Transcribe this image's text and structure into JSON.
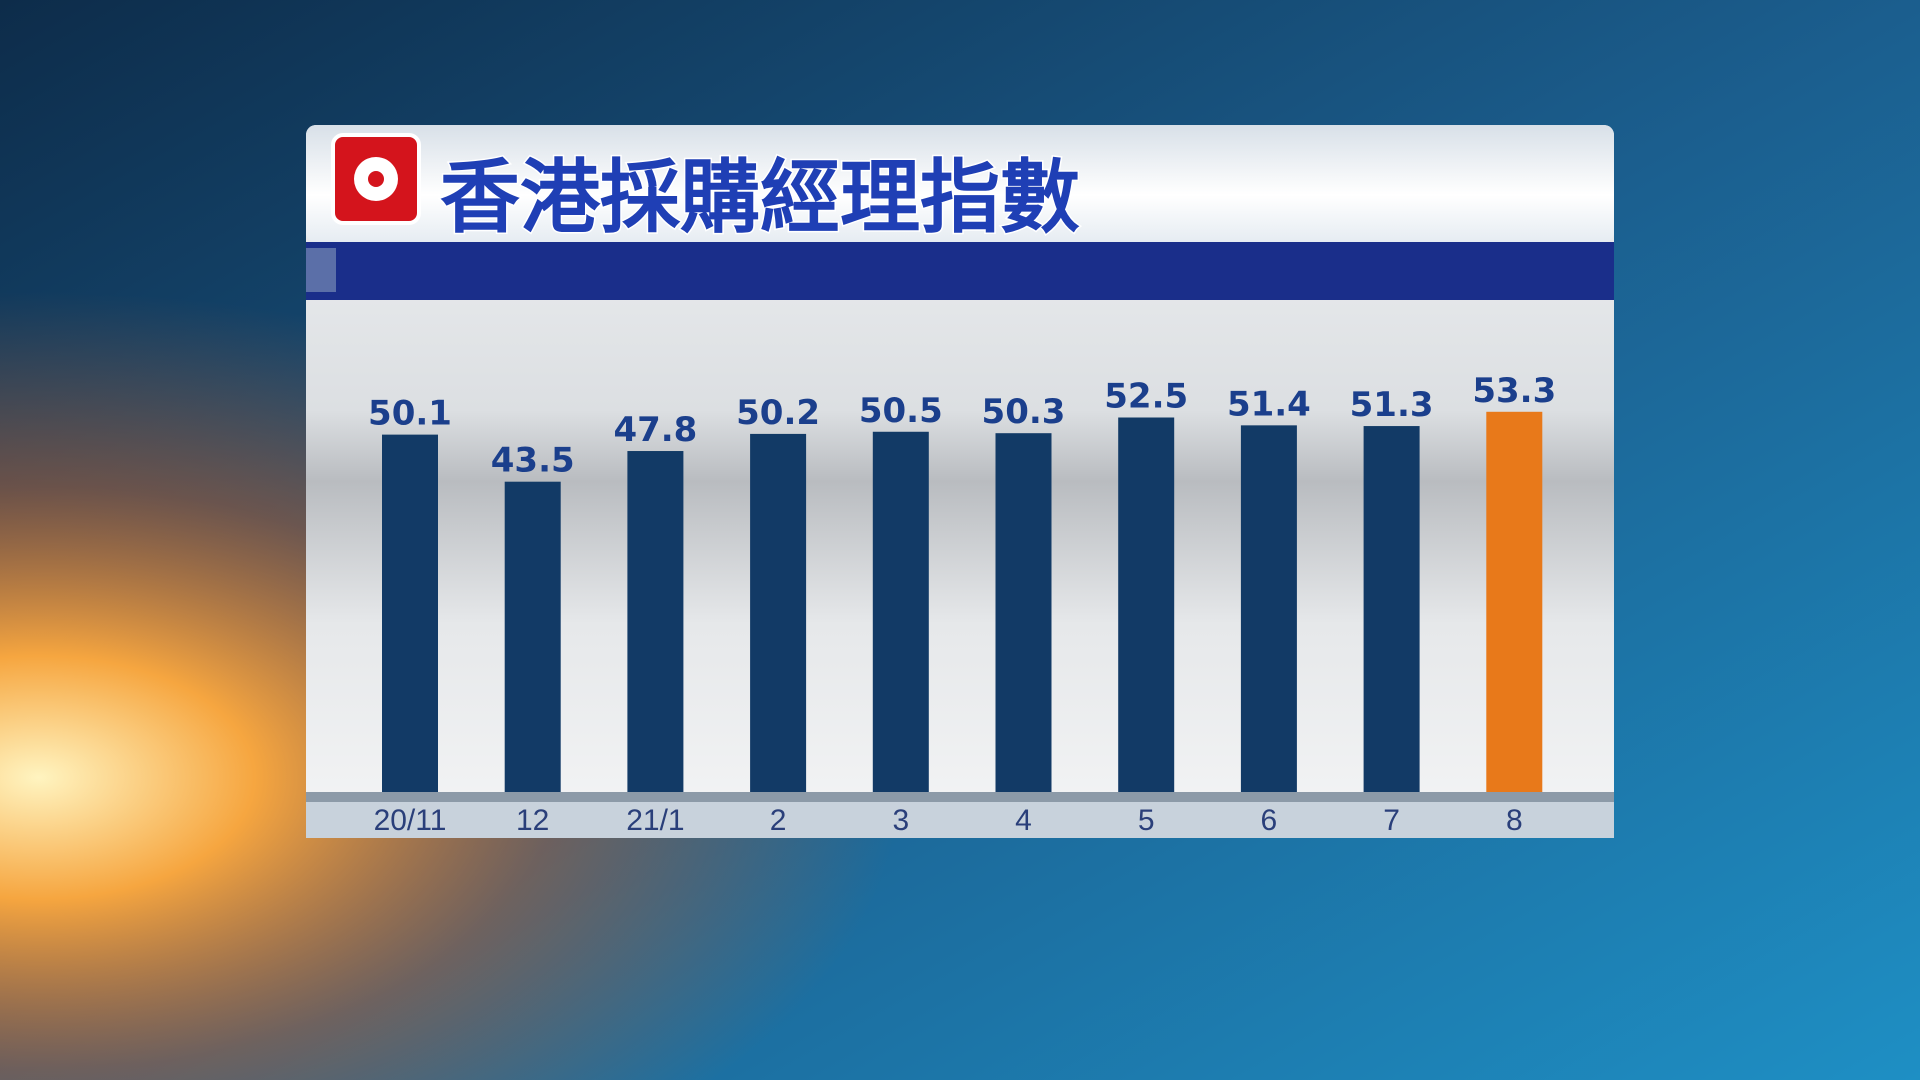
{
  "chart_data": {
    "type": "bar",
    "title": "香港採購經理指數",
    "categories": [
      "20/11",
      "12",
      "21/1",
      "2",
      "3",
      "4",
      "5",
      "6",
      "7",
      "8"
    ],
    "values": [
      50.1,
      43.5,
      47.8,
      50.2,
      50.5,
      50.3,
      52.5,
      51.4,
      51.3,
      53.3
    ],
    "colors": [
      "#123a66",
      "#123a66",
      "#123a66",
      "#123a66",
      "#123a66",
      "#123a66",
      "#123a66",
      "#123a66",
      "#123a66",
      "#e8791a"
    ],
    "ylim": [
      0,
      60
    ]
  }
}
